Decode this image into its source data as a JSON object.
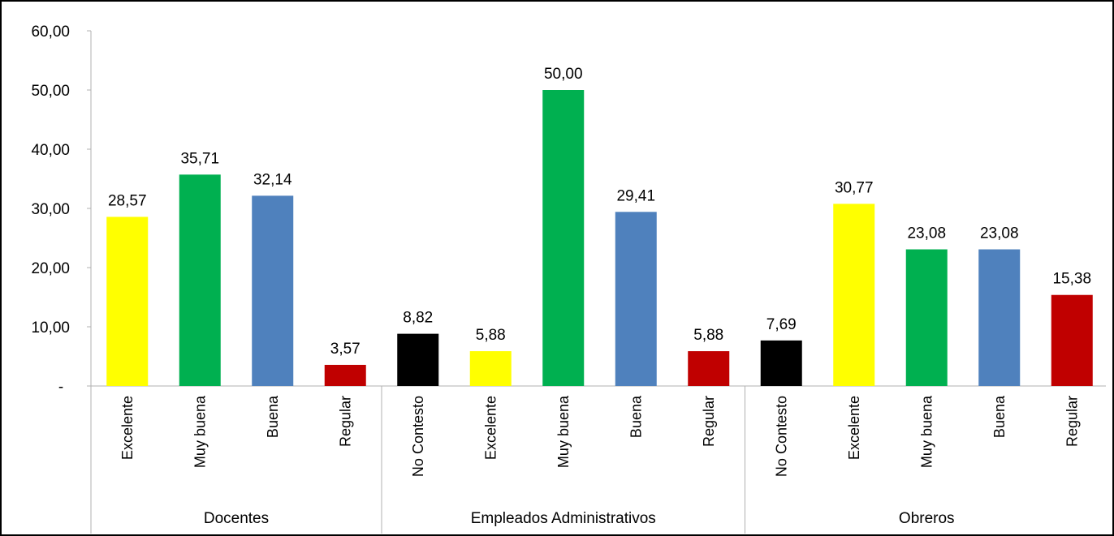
{
  "chart_data": {
    "type": "bar",
    "yticks": [
      "-",
      "10,00",
      "20,00",
      "30,00",
      "40,00",
      "50,00",
      "60,00"
    ],
    "ylim": [
      0,
      60
    ],
    "grid": false,
    "groups": [
      {
        "name": "Docentes",
        "bars": [
          {
            "category": "Excelente",
            "value": 28.57,
            "label": "28,57",
            "color": "#FFFF00"
          },
          {
            "category": "Muy buena",
            "value": 35.71,
            "label": "35,71",
            "color": "#00B050"
          },
          {
            "category": "Buena",
            "value": 32.14,
            "label": "32,14",
            "color": "#4F81BD"
          },
          {
            "category": "Regular",
            "value": 3.57,
            "label": "3,57",
            "color": "#C00000"
          }
        ]
      },
      {
        "name": "Empleados Administrativos",
        "bars": [
          {
            "category": "No Contesto",
            "value": 8.82,
            "label": "8,82",
            "color": "#000000"
          },
          {
            "category": "Excelente",
            "value": 5.88,
            "label": "5,88",
            "color": "#FFFF00"
          },
          {
            "category": "Muy buena",
            "value": 50.0,
            "label": "50,00",
            "color": "#00B050"
          },
          {
            "category": "Buena",
            "value": 29.41,
            "label": "29,41",
            "color": "#4F81BD"
          },
          {
            "category": "Regular",
            "value": 5.88,
            "label": "5,88",
            "color": "#C00000"
          }
        ]
      },
      {
        "name": "Obreros",
        "bars": [
          {
            "category": "No Contesto",
            "value": 7.69,
            "label": "7,69",
            "color": "#000000"
          },
          {
            "category": "Excelente",
            "value": 30.77,
            "label": "30,77",
            "color": "#FFFF00"
          },
          {
            "category": "Muy buena",
            "value": 23.08,
            "label": "23,08",
            "color": "#00B050"
          },
          {
            "category": "Buena",
            "value": 23.08,
            "label": "23,08",
            "color": "#4F81BD"
          },
          {
            "category": "Regular",
            "value": 15.38,
            "label": "15,38",
            "color": "#C00000"
          }
        ]
      }
    ]
  }
}
